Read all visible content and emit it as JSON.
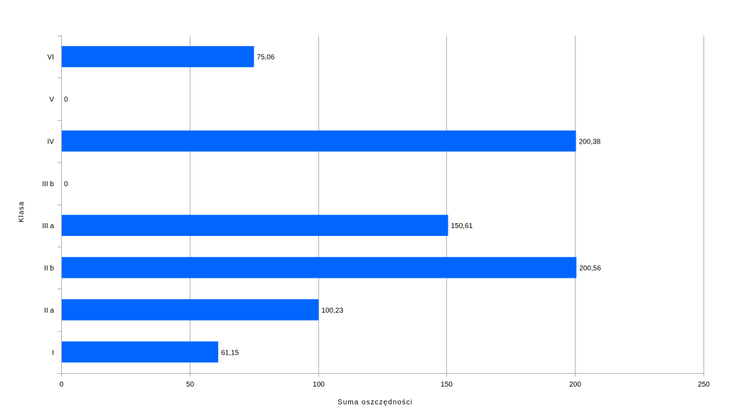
{
  "chart_data": {
    "type": "bar",
    "orientation": "horizontal",
    "categories": [
      "I",
      "II a",
      "II b",
      "III a",
      "III b",
      "IV",
      "V",
      "VI"
    ],
    "values": [
      61.15,
      100.23,
      200.56,
      150.61,
      0,
      200.38,
      0,
      75.06
    ],
    "data_labels": [
      "61,15",
      "100,23",
      "200,56",
      "150,61",
      "0",
      "200,38",
      "0",
      "75,06"
    ],
    "xlabel": "Suma oszczędności",
    "ylabel": "Klasa",
    "xlim": [
      0,
      250
    ],
    "xticks": [
      0,
      50,
      100,
      150,
      200,
      250
    ],
    "grid": true,
    "legend": "none",
    "colors": {
      "bar": "#0066ff",
      "grid": "#b3b3b3",
      "axis": "#b3b3b3"
    }
  }
}
